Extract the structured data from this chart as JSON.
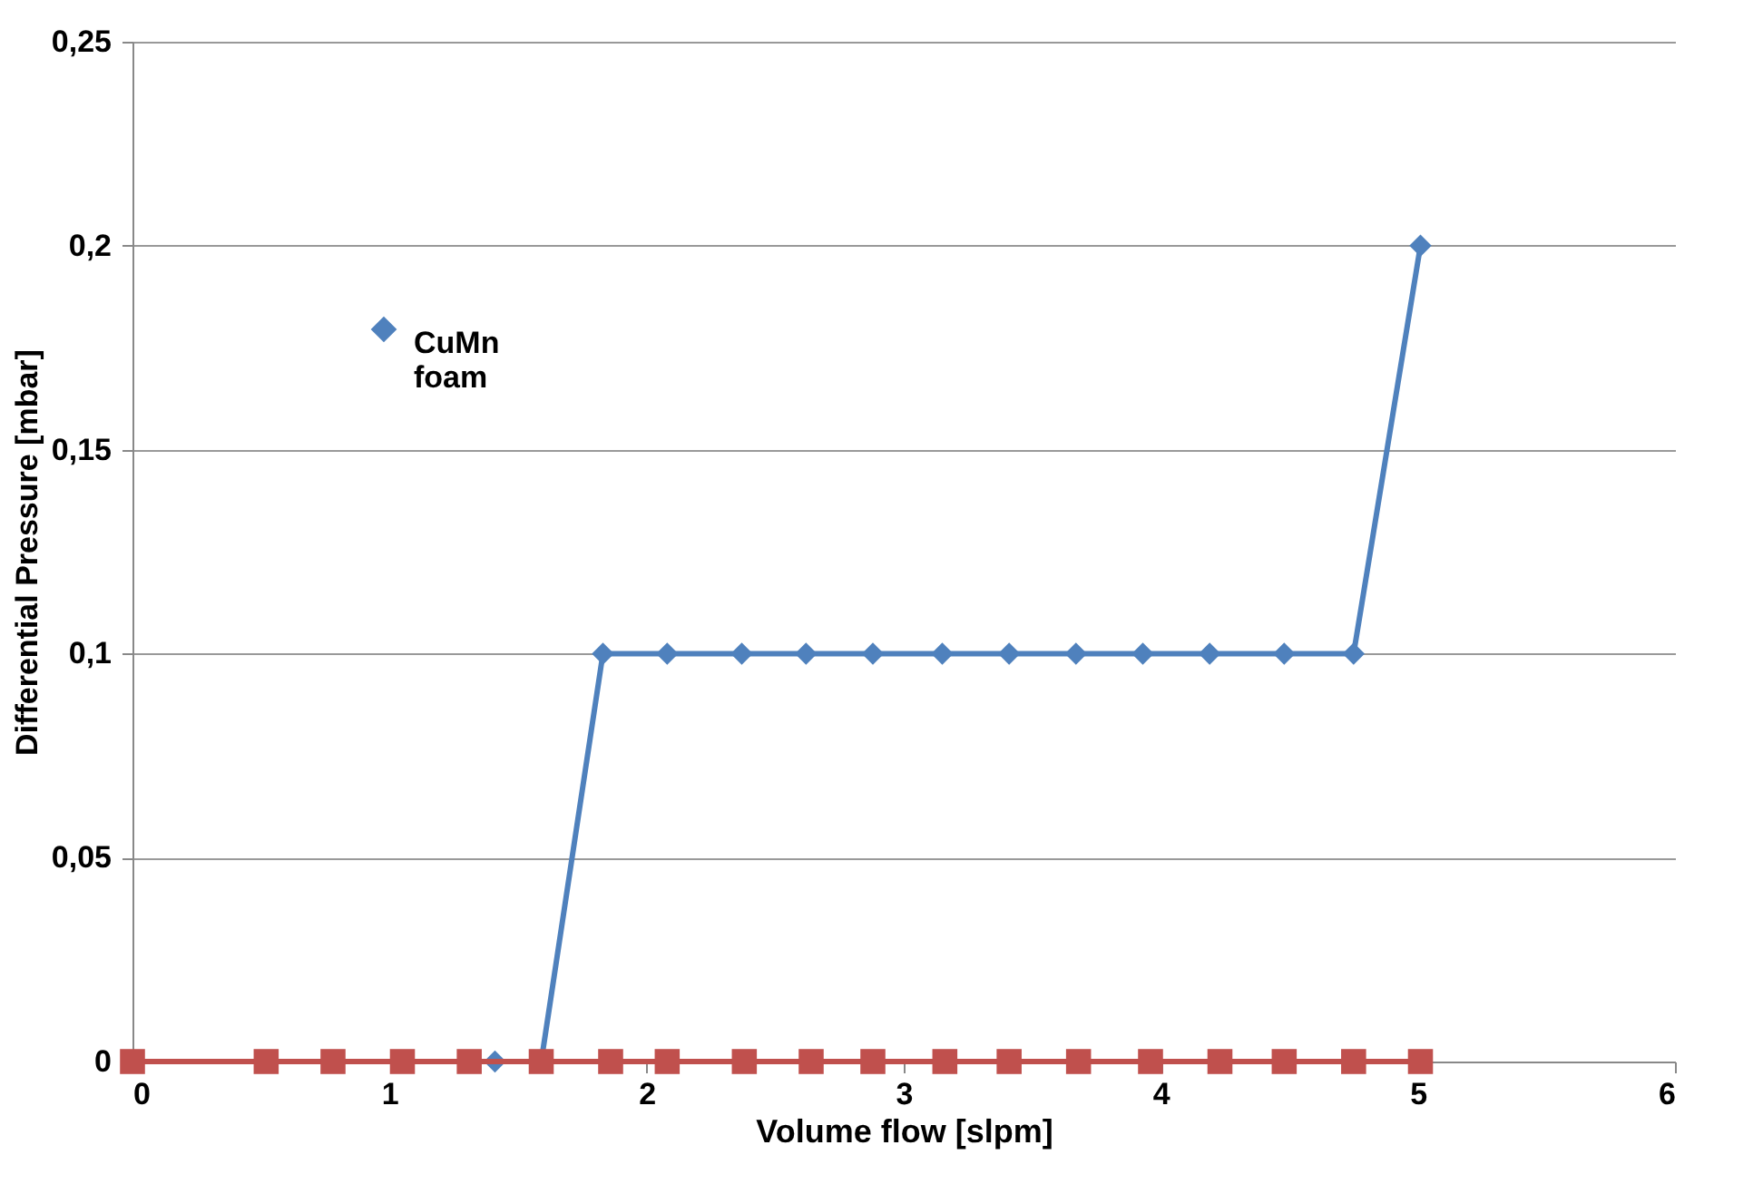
{
  "chart_data": {
    "type": "line",
    "xlabel": "Volume flow [slpm]",
    "ylabel": "Differential Pressure [mbar]",
    "xlim": [
      0,
      6
    ],
    "xticks": [
      0,
      1,
      2,
      3,
      4,
      5,
      6
    ],
    "ylim": [
      0,
      0.25
    ],
    "yticks": [
      {
        "value": 0,
        "label": "0"
      },
      {
        "value": 0.05,
        "label": "0,05"
      },
      {
        "value": 0.1,
        "label": "0,1"
      },
      {
        "value": 0.15,
        "label": "0,15"
      },
      {
        "value": 0.2,
        "label": "0,2"
      },
      {
        "value": 0.25,
        "label": "0,25"
      }
    ],
    "grid": "y",
    "legend": "top left",
    "line_style": "solid",
    "series": [
      {
        "name": "CuMn foam",
        "color": "#4f81bd",
        "marker": "diamond",
        "x": [
          1.41,
          1.59,
          1.83,
          2.08,
          2.37,
          2.62,
          2.88,
          3.15,
          3.41,
          3.67,
          3.93,
          4.19,
          4.48,
          4.75,
          5.01
        ],
        "values": [
          0,
          0,
          0.1,
          0.1,
          0.1,
          0.1,
          0.1,
          0.1,
          0.1,
          0.1,
          0.1,
          0.1,
          0.1,
          0.1,
          0.2
        ]
      },
      {
        "color": "#c0504d",
        "marker": "square",
        "x": [
          0,
          0.52,
          0.78,
          1.05,
          1.31,
          1.59,
          1.86,
          2.08,
          2.38,
          2.64,
          2.88,
          3.16,
          3.41,
          3.68,
          3.96,
          4.23,
          4.48,
          4.75,
          5.01
        ],
        "values": [
          0,
          0,
          0,
          0,
          0,
          0,
          0,
          0,
          0,
          0,
          0,
          0,
          0,
          0,
          0,
          0,
          0,
          0,
          0
        ]
      }
    ]
  }
}
